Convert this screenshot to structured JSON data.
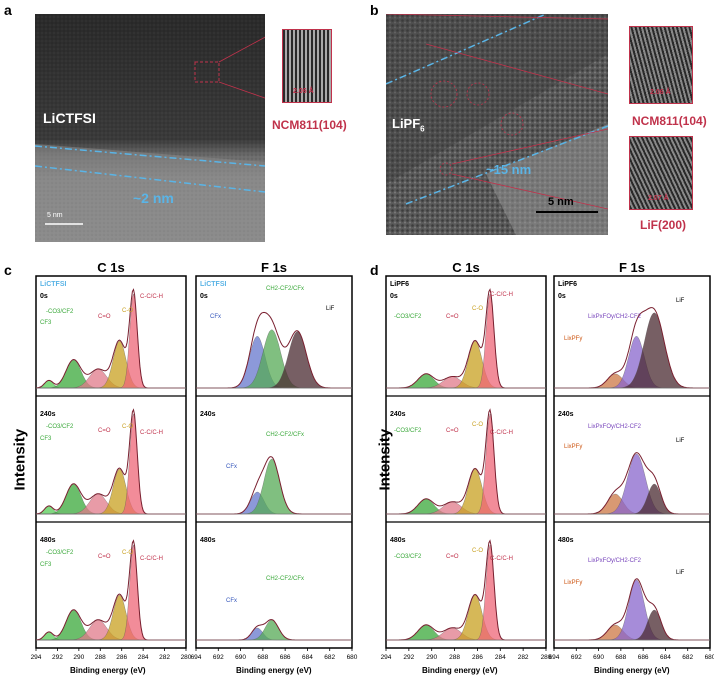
{
  "panel_labels": {
    "a": "a",
    "b": "b",
    "c": "c",
    "d": "d"
  },
  "panel_a": {
    "sample": "LiCTFSI",
    "inset_spacing": "2.06 Å",
    "inset_label": "NCM811(104)",
    "thickness": "~2 nm",
    "scalebar": "5 nm"
  },
  "panel_b": {
    "sample": "LiPF",
    "sample_sub": "6",
    "inset1_spacing": "2.06 Å",
    "inset1_label": "NCM811(104)",
    "inset2_spacing": "2.07 Å",
    "inset2_label": "LiF(200)",
    "thickness": "~15 nm",
    "scalebar": "5 nm"
  },
  "panel_c": {
    "c1s_title": "C 1s",
    "f1s_title": "F 1s",
    "sample": "LiCTFSI",
    "times": [
      "0s",
      "240s",
      "480s"
    ],
    "c1s_peaks": {
      "cf3": "CF3",
      "co2": "-CO3/CF2",
      "ceqo": "C=O",
      "co": "C-O",
      "cc": "C-C/C-H"
    },
    "f1s_peaks": {
      "cfx": "CFx",
      "ch2": "CH2-CF2/CFx",
      "lif": "LiF"
    },
    "xlabel": "Binding energy (eV)"
  },
  "panel_d": {
    "c1s_title": "C 1s",
    "f1s_title": "F 1s",
    "sample": "LiPF6",
    "times": [
      "0s",
      "240s",
      "480s"
    ],
    "c1s_peaks": {
      "co2": "-CO3/CF2",
      "ceqo": "C=O",
      "co": "C-O",
      "cc": "C-C/C-H"
    },
    "f1s_peaks": {
      "lipf": "LixPFy",
      "lipo": "LixPxFOy/CH2-CF2",
      "lif": "LiF"
    },
    "xlabel": "Binding energy (eV)"
  },
  "ylabel": "Intensity",
  "colors": {
    "red": "#c0324b",
    "cyan": "#5ab4e6",
    "green": "#3aa83a",
    "yellow": "#c8a020",
    "blue": "#3355bb",
    "purple": "#7744bb",
    "orange": "#cc5511",
    "darkred": "#8b1a2a"
  },
  "chart_data": [
    {
      "type": "line",
      "panel": "c-C1s",
      "xlim": [
        294,
        280
      ],
      "x_ticks": [
        294,
        292,
        290,
        288,
        286,
        284,
        282,
        280
      ],
      "peaks_eV": [
        292.5,
        290.5,
        288.2,
        286.2,
        284.8
      ]
    },
    {
      "type": "line",
      "panel": "c-F1s",
      "xlim": [
        694,
        680
      ],
      "x_ticks": [
        694,
        692,
        690,
        688,
        686,
        684,
        682,
        680
      ],
      "peaks_eV": [
        688.5,
        687.2,
        684.9
      ]
    },
    {
      "type": "line",
      "panel": "d-C1s",
      "xlim": [
        294,
        280
      ],
      "x_ticks": [
        294,
        292,
        290,
        288,
        286,
        284,
        282,
        280
      ],
      "peaks_eV": [
        290.5,
        288.2,
        286.2,
        284.8
      ]
    },
    {
      "type": "line",
      "panel": "d-F1s",
      "xlim": [
        694,
        680
      ],
      "x_ticks": [
        694,
        692,
        690,
        688,
        686,
        684,
        682,
        680
      ],
      "peaks_eV": [
        688.5,
        686.6,
        685.0
      ]
    }
  ]
}
